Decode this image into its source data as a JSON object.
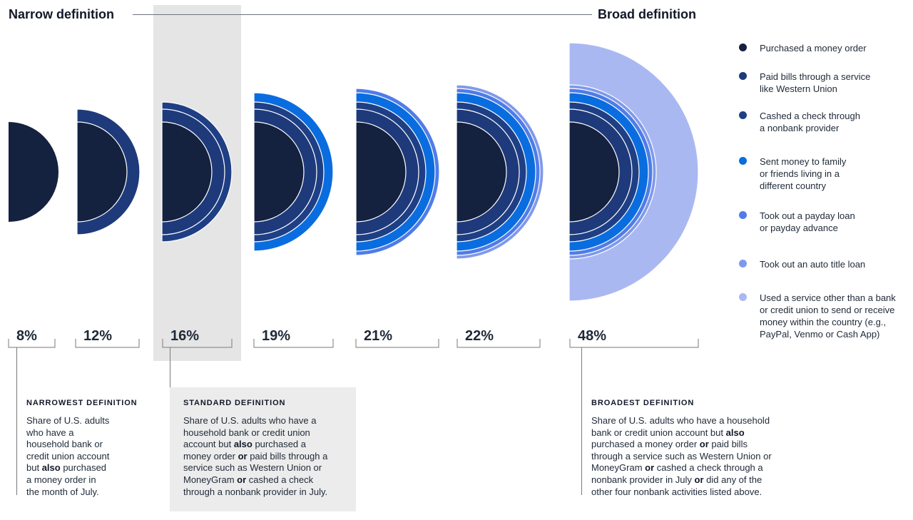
{
  "header": {
    "left_title": "Narrow definition",
    "right_title": "Broad definition"
  },
  "colors": {
    "money_order": "#14213f",
    "paid_bills": "#1e3a7a",
    "cashed_check": "#1f3f85",
    "sent_money_abroad": "#0a6ddf",
    "payday_loan": "#4f7ce8",
    "auto_title_loan": "#7f99ea",
    "other_service": "#aab8f2",
    "highlight_band": "#e5e5e5"
  },
  "legend": {
    "items": [
      {
        "label": "Purchased a money order",
        "color": "#14213f"
      },
      {
        "label": "Paid bills through a service\nlike Western Union",
        "color": "#1e3a7a"
      },
      {
        "label": "Cashed a check through\na nonbank provider",
        "color": "#1f3f85"
      },
      {
        "label": "Sent money to family\nor friends living in a\ndifferent country",
        "color": "#0a6ddf"
      },
      {
        "label": "Took out a payday loan\nor payday advance",
        "color": "#4f7ce8"
      },
      {
        "label": "Took out an auto title loan",
        "color": "#7f99ea"
      },
      {
        "label": "Used a service other than a bank\nor credit union to send or receive\nmoney within the country (e.g.,\nPayPal, Venmo or Cash App)",
        "color": "#aab8f2"
      }
    ]
  },
  "chart_data": {
    "type": "nested-semicircle",
    "unit": "%",
    "highlighted_index": 2,
    "layers": [
      "Purchased a money order",
      "Paid bills through a service like Western Union",
      "Cashed a check through a nonbank provider",
      "Sent money to family or friends living in a different country",
      "Took out a payday loan or payday advance",
      "Took out an auto title loan",
      "Used a service other than a bank or credit union to send or receive money within the country (e.g., PayPal, Venmo or Cash App)"
    ],
    "values": [
      8,
      12,
      16,
      19,
      21,
      22,
      48
    ],
    "labels": [
      "8%",
      "12%",
      "16%",
      "19%",
      "21%",
      "22%",
      "48%"
    ],
    "cumulative_layers_included": [
      1,
      2,
      3,
      4,
      5,
      6,
      7
    ]
  },
  "definitions": {
    "narrowest": {
      "title": "NARROWEST DEFINITION",
      "text_html": "Share of U.S. adults<br>who have a<br>household bank or<br>credit union account<br>but <b>also</b> purchased<br>a money order in<br>the month of July."
    },
    "standard": {
      "title": "STANDARD DEFINITION",
      "text_html": "Share of U.S. adults who have a<br>household bank or credit union<br>account but <b>also</b> purchased a<br>money order <b>or</b> paid bills through a<br>service such as Western Union or<br>MoneyGram <b>or</b> cashed a check<br>through a nonbank provider in July."
    },
    "broadest": {
      "title": "BROADEST DEFINITION",
      "text_html": "Share of U.S. adults who have a household<br>bank or credit union account but <b>also</b><br>purchased a money order <b>or</b> paid bills<br>through a service such as Western Union or<br>MoneyGram <b>or</b> cashed a check through a<br>nonbank provider in July <b>or</b> did any of the<br>other four nonbank activities listed above."
    }
  }
}
